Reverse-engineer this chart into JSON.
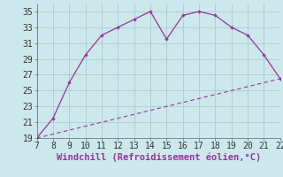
{
  "x_windchill": [
    7,
    8,
    9,
    10,
    11,
    12,
    13,
    14,
    15,
    16,
    17,
    18,
    19,
    20,
    21,
    22
  ],
  "y_windchill": [
    19.0,
    21.5,
    26.0,
    29.5,
    32.0,
    33.0,
    34.0,
    35.0,
    31.5,
    34.5,
    35.0,
    34.5,
    33.0,
    32.0,
    29.5,
    26.5
  ],
  "x_temp": [
    7,
    8,
    9,
    10,
    11,
    12,
    13,
    14,
    15,
    16,
    17,
    18,
    19,
    20,
    21,
    22
  ],
  "y_temp": [
    19.0,
    19.5,
    20.0,
    20.5,
    21.0,
    21.5,
    22.0,
    22.5,
    23.0,
    23.5,
    24.0,
    24.5,
    25.0,
    25.5,
    26.0,
    26.5
  ],
  "line_color": "#993399",
  "bg_color": "#cce8ec",
  "grid_color": "#aacccc",
  "xlabel": "Windchill (Refroidissement éolien,°C)",
  "xlim": [
    7,
    22
  ],
  "ylim": [
    19,
    36
  ],
  "yticks": [
    19,
    21,
    23,
    25,
    27,
    29,
    31,
    33,
    35
  ],
  "xticks": [
    7,
    8,
    9,
    10,
    11,
    12,
    13,
    14,
    15,
    16,
    17,
    18,
    19,
    20,
    21,
    22
  ],
  "xlabel_fontsize": 7.5,
  "tick_fontsize": 7.0
}
